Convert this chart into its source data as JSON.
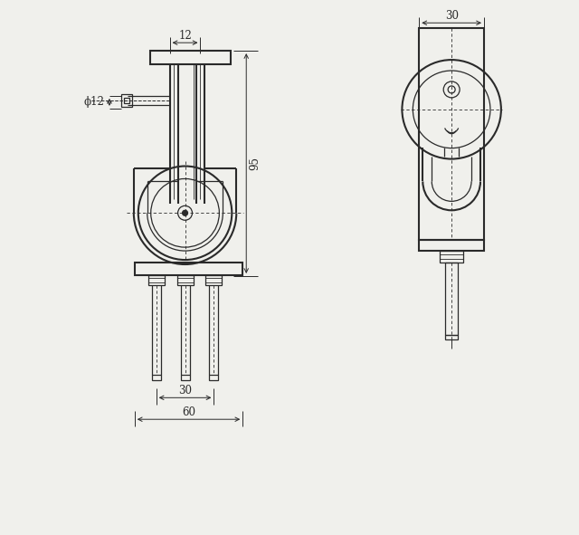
{
  "bg_color": "#f0f0ec",
  "line_color": "#2a2a2a",
  "fig_w": 6.4,
  "fig_h": 5.91
}
